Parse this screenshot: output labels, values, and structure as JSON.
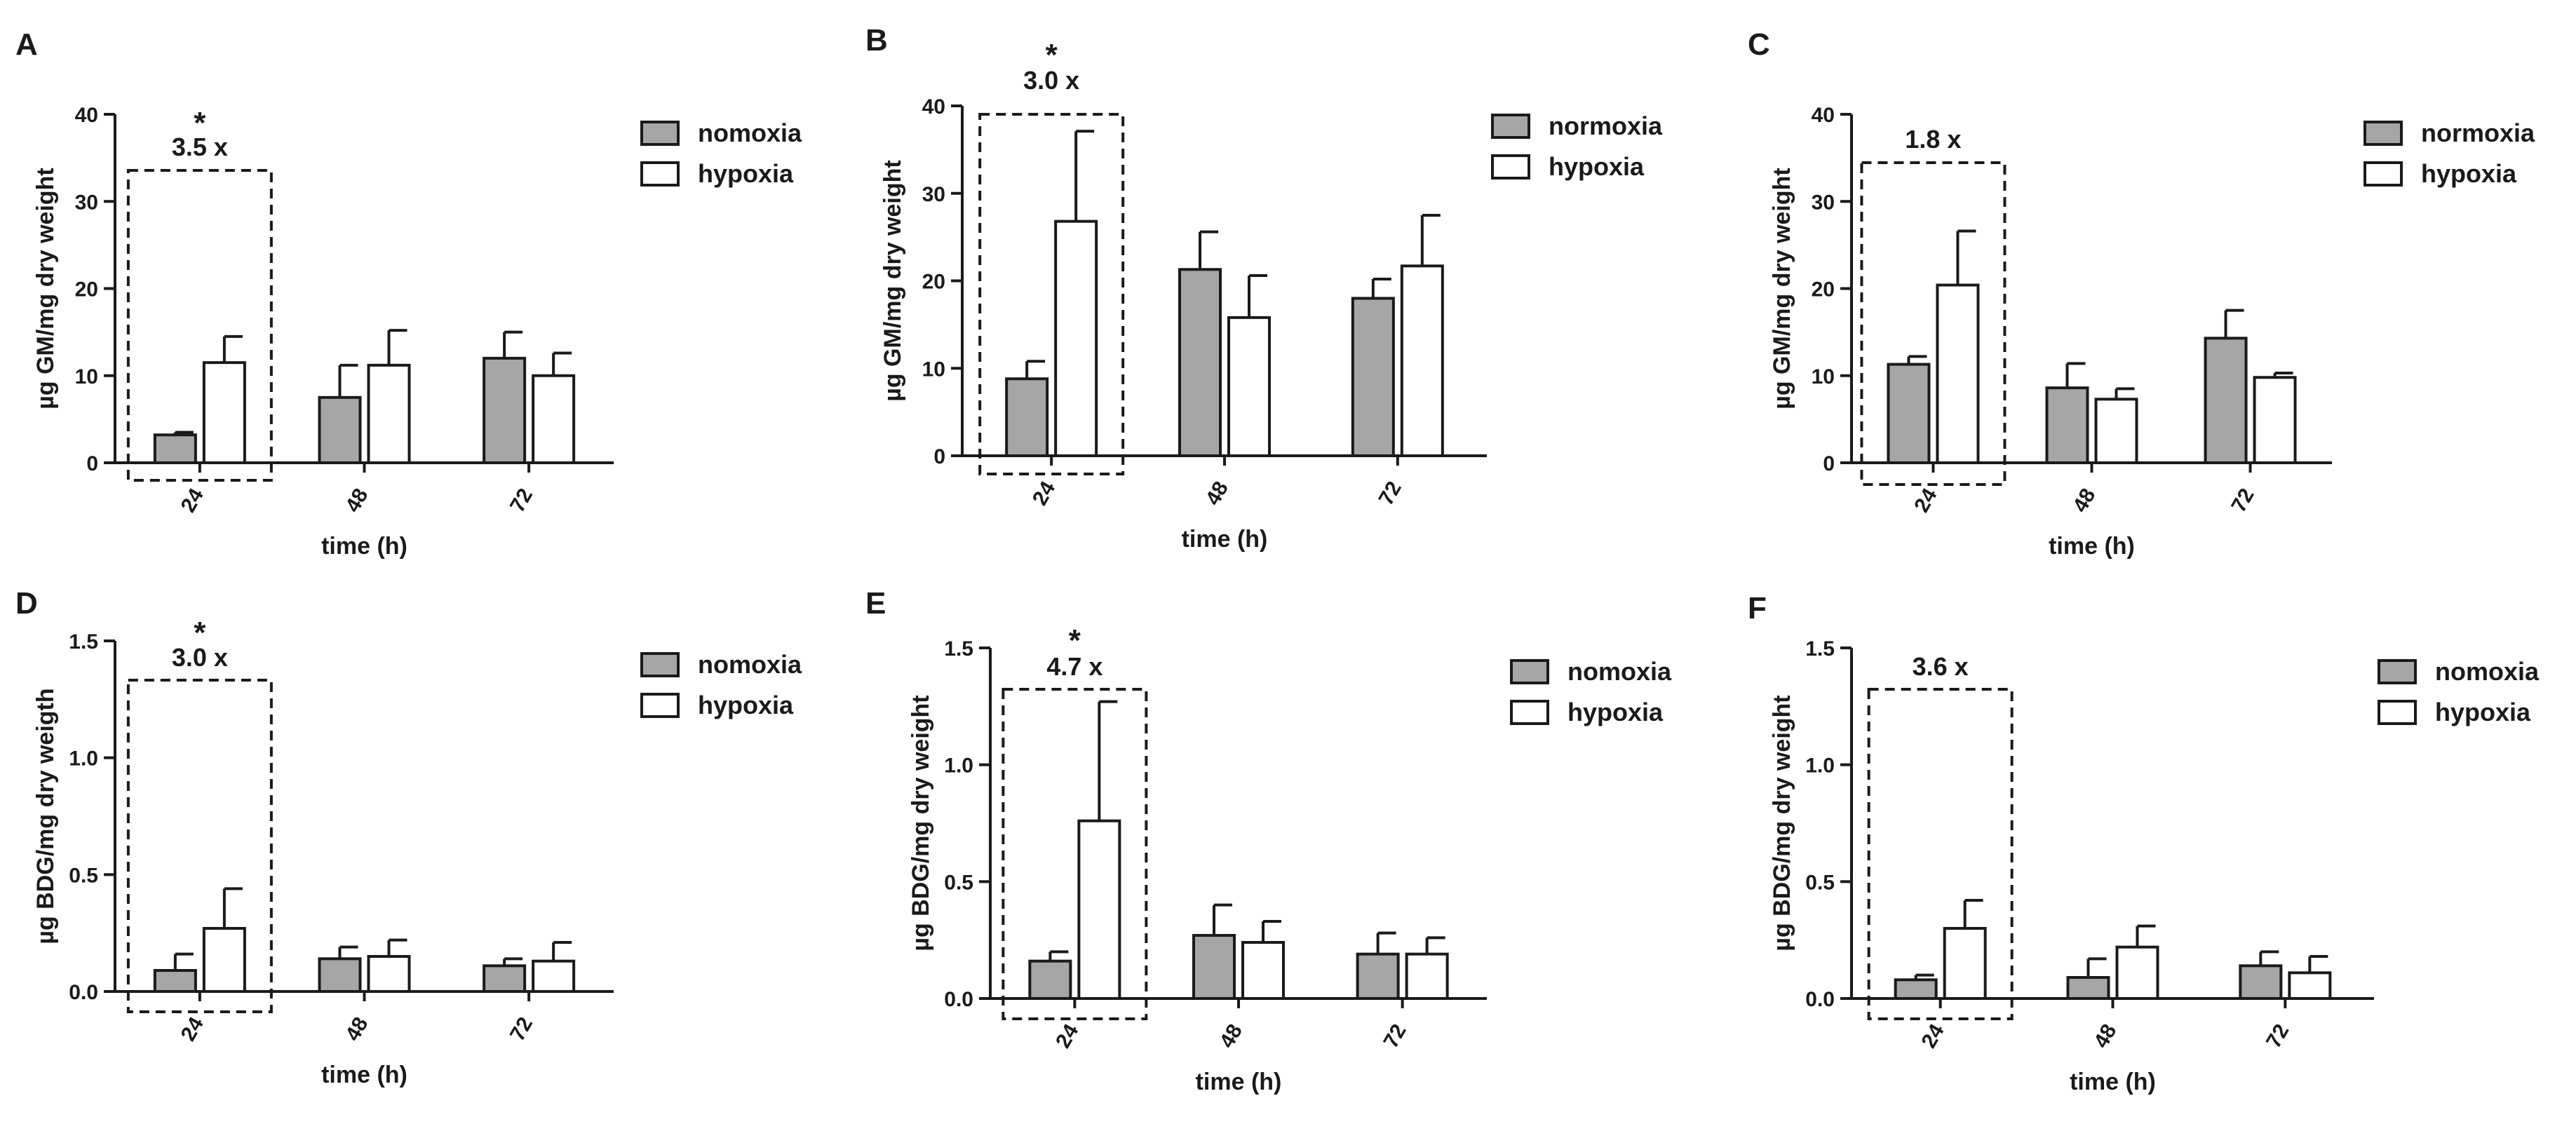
{
  "colors": {
    "normoxia": "#a6a6a6",
    "hypoxia": "#ffffff",
    "ink": "#1a1a1a"
  },
  "chart_data": [
    {
      "panel": "A",
      "type": "bar",
      "ylabel": "µg GM/mg dry weight",
      "xlabel": "time (h)",
      "categories": [
        "24",
        "48",
        "72"
      ],
      "ylim": [
        0,
        40
      ],
      "yticks": [
        0,
        10,
        20,
        30,
        40
      ],
      "ytick_labels": [
        "0",
        "10",
        "20",
        "30",
        "40"
      ],
      "series": [
        {
          "name": "nomoxia",
          "values": [
            3.2,
            7.5,
            12.0
          ],
          "errors": [
            0.3,
            3.7,
            3.0
          ]
        },
        {
          "name": "hypoxia",
          "values": [
            11.5,
            11.2,
            10.0
          ],
          "errors": [
            3.0,
            4.0,
            2.6
          ]
        }
      ],
      "annotation": {
        "category": "24",
        "fold": "3.5 x",
        "star": "*"
      }
    },
    {
      "panel": "B",
      "type": "bar",
      "ylabel": "µg GM/mg dry weight",
      "xlabel": "time (h)",
      "categories": [
        "24",
        "48",
        "72"
      ],
      "ylim": [
        0,
        40
      ],
      "yticks": [
        0,
        10,
        20,
        30,
        40
      ],
      "ytick_labels": [
        "0",
        "10",
        "20",
        "30",
        "40"
      ],
      "series": [
        {
          "name": "normoxia",
          "values": [
            8.8,
            21.3,
            18.0
          ],
          "errors": [
            2.0,
            4.3,
            2.2
          ]
        },
        {
          "name": "hypoxia",
          "values": [
            26.8,
            15.8,
            21.7
          ],
          "errors": [
            10.3,
            4.8,
            5.8
          ]
        }
      ],
      "annotation": {
        "category": "24",
        "fold": "3.0 x",
        "star": "*"
      }
    },
    {
      "panel": "C",
      "type": "bar",
      "ylabel": "µg GM/mg dry weight",
      "xlabel": "time (h)",
      "categories": [
        "24",
        "48",
        "72"
      ],
      "ylim": [
        0,
        40
      ],
      "yticks": [
        0,
        10,
        20,
        30,
        40
      ],
      "ytick_labels": [
        "0",
        "10",
        "20",
        "30",
        "40"
      ],
      "series": [
        {
          "name": "normoxia",
          "values": [
            11.3,
            8.6,
            14.3
          ],
          "errors": [
            0.9,
            2.8,
            3.2
          ]
        },
        {
          "name": "hypoxia",
          "values": [
            20.4,
            7.3,
            9.8
          ],
          "errors": [
            6.2,
            1.2,
            0.5
          ]
        }
      ],
      "annotation": {
        "category": "24",
        "fold": "1.8 x",
        "star": ""
      }
    },
    {
      "panel": "D",
      "type": "bar",
      "ylabel": "µg BDG/mg dry weigth",
      "xlabel": "time (h)",
      "categories": [
        "24",
        "48",
        "72"
      ],
      "ylim": [
        0,
        1.5
      ],
      "yticks": [
        0,
        0.5,
        1.0,
        1.5
      ],
      "ytick_labels": [
        "0.0",
        "0.5",
        "1.0",
        "1.5"
      ],
      "series": [
        {
          "name": "nomoxia",
          "values": [
            0.09,
            0.14,
            0.11
          ],
          "errors": [
            0.07,
            0.05,
            0.03
          ]
        },
        {
          "name": "hypoxia",
          "values": [
            0.27,
            0.15,
            0.13
          ],
          "errors": [
            0.17,
            0.07,
            0.08
          ]
        }
      ],
      "annotation": {
        "category": "24",
        "fold": "3.0 x",
        "star": "*"
      }
    },
    {
      "panel": "E",
      "type": "bar",
      "ylabel": "µg BDG/mg dry weight",
      "xlabel": "time (h)",
      "categories": [
        "24",
        "48",
        "72"
      ],
      "ylim": [
        0,
        1.5
      ],
      "yticks": [
        0,
        0.5,
        1.0,
        1.5
      ],
      "ytick_labels": [
        "0.0",
        "0.5",
        "1.0",
        "1.5"
      ],
      "series": [
        {
          "name": "nomoxia",
          "values": [
            0.16,
            0.27,
            0.19
          ],
          "errors": [
            0.04,
            0.13,
            0.09
          ]
        },
        {
          "name": "hypoxia",
          "values": [
            0.76,
            0.24,
            0.19
          ],
          "errors": [
            0.51,
            0.09,
            0.07
          ]
        }
      ],
      "annotation": {
        "category": "24",
        "fold": "4.7 x",
        "star": "*"
      }
    },
    {
      "panel": "F",
      "type": "bar",
      "ylabel": "µg BDG/mg dry weight",
      "xlabel": "time (h)",
      "categories": [
        "24",
        "48",
        "72"
      ],
      "ylim": [
        0,
        1.5
      ],
      "yticks": [
        0,
        0.5,
        1.0,
        1.5
      ],
      "ytick_labels": [
        "0.0",
        "0.5",
        "1.0",
        "1.5"
      ],
      "series": [
        {
          "name": "nomoxia",
          "values": [
            0.08,
            0.09,
            0.14
          ],
          "errors": [
            0.02,
            0.08,
            0.06
          ]
        },
        {
          "name": "hypoxia",
          "values": [
            0.3,
            0.22,
            0.11
          ],
          "errors": [
            0.12,
            0.09,
            0.07
          ]
        }
      ],
      "annotation": {
        "category": "24",
        "fold": "3.6 x",
        "star": ""
      }
    }
  ]
}
